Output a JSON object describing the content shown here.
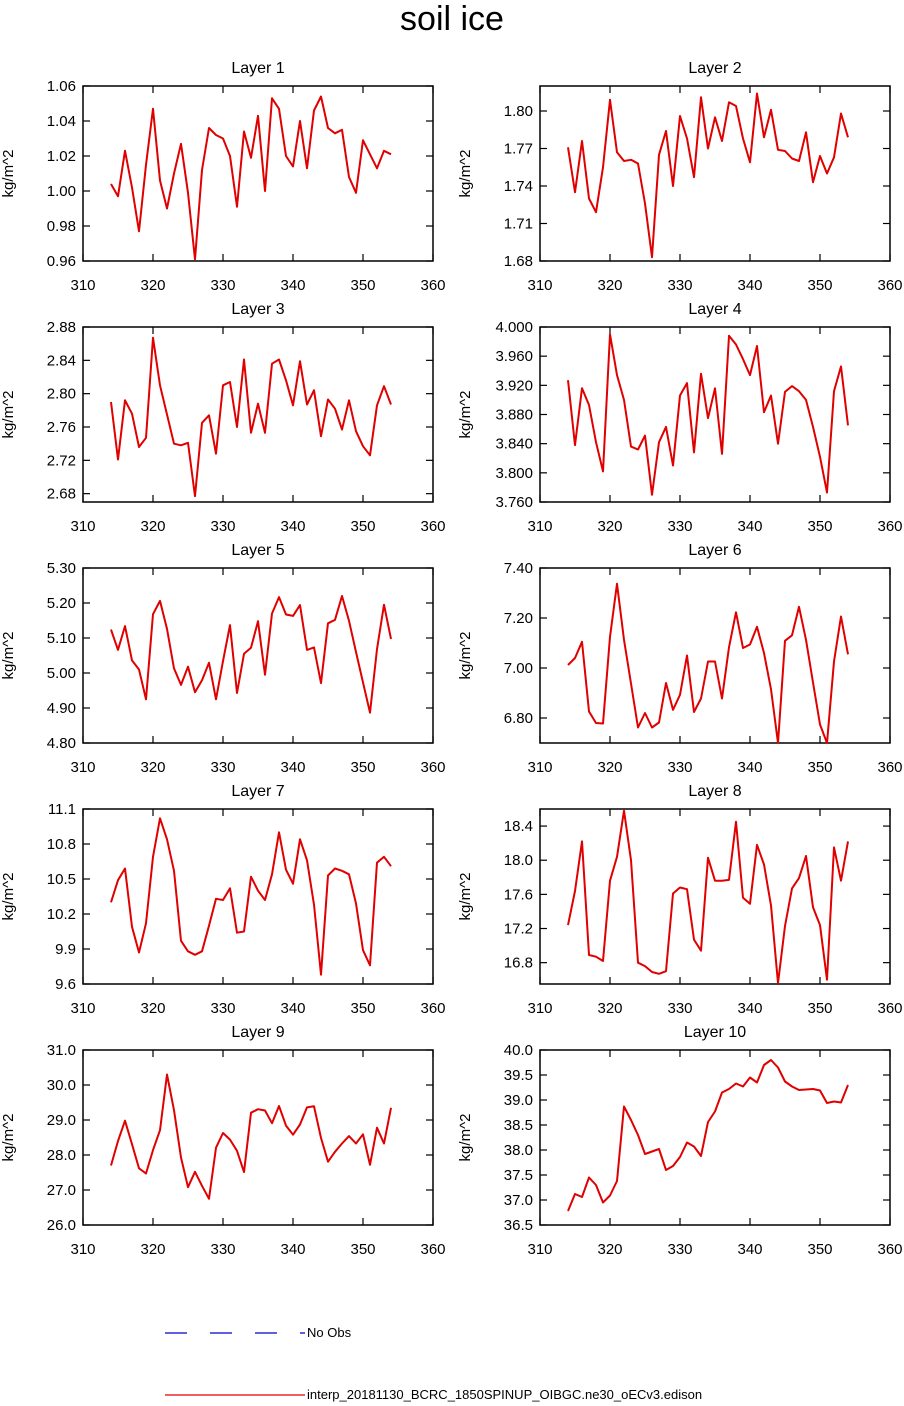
{
  "title": "soil ice",
  "legend": {
    "entries": [
      {
        "label": "No Obs",
        "color": "#0000cc",
        "dash": "dashed"
      },
      {
        "label": "interp_20181130_BCRC_1850SPINUP_OIBGC.ne30_oECv3.edison",
        "color": "#e00000",
        "dash": "solid"
      }
    ]
  },
  "colors": {
    "series": "#e00000",
    "no_obs": "#0000cc"
  },
  "chart_data": [
    {
      "type": "line",
      "title": "Layer 1",
      "xlabel": "",
      "ylabel": "kg/m^2",
      "xlim": [
        310,
        360
      ],
      "xticks": [
        310,
        320,
        330,
        340,
        350,
        360
      ],
      "ylim": [
        0.96,
        1.06
      ],
      "yticks": [
        "0.96",
        "0.98",
        "1.00",
        "1.02",
        "1.04",
        "1.06"
      ],
      "x": [
        314,
        315,
        316,
        317,
        318,
        319,
        320,
        321,
        322,
        323,
        324,
        325,
        326,
        327,
        328,
        329,
        330,
        331,
        332,
        333,
        334,
        335,
        336,
        337,
        338,
        339,
        340,
        341,
        342,
        343,
        344,
        345,
        346,
        347,
        348,
        349,
        350,
        351,
        352,
        353,
        354
      ],
      "values": [
        1.004,
        0.997,
        1.023,
        1.002,
        0.977,
        1.015,
        1.047,
        1.006,
        0.99,
        1.01,
        1.027,
        0.999,
        0.961,
        1.012,
        1.036,
        1.032,
        1.03,
        1.02,
        0.991,
        1.034,
        1.019,
        1.043,
        1.0,
        1.053,
        1.047,
        1.02,
        1.014,
        1.04,
        1.013,
        1.046,
        1.054,
        1.036,
        1.033,
        1.035,
        1.008,
        0.999,
        1.029,
        1.021,
        1.013,
        1.023,
        1.021
      ]
    },
    {
      "type": "line",
      "title": "Layer 2",
      "xlabel": "",
      "ylabel": "kg/m^2",
      "xlim": [
        310,
        360
      ],
      "xticks": [
        310,
        320,
        330,
        340,
        350,
        360
      ],
      "ylim": [
        1.68,
        1.82
      ],
      "yticks": [
        "1.68",
        "1.71",
        "1.74",
        "1.77",
        "1.80"
      ],
      "x": [
        314,
        315,
        316,
        317,
        318,
        319,
        320,
        321,
        322,
        323,
        324,
        325,
        326,
        327,
        328,
        329,
        330,
        331,
        332,
        333,
        334,
        335,
        336,
        337,
        338,
        339,
        340,
        341,
        342,
        343,
        344,
        345,
        346,
        347,
        348,
        349,
        350,
        351,
        352,
        353,
        354
      ],
      "values": [
        1.771,
        1.735,
        1.776,
        1.73,
        1.719,
        1.755,
        1.809,
        1.767,
        1.76,
        1.761,
        1.758,
        1.726,
        1.683,
        1.765,
        1.784,
        1.74,
        1.796,
        1.778,
        1.747,
        1.811,
        1.77,
        1.795,
        1.776,
        1.807,
        1.804,
        1.778,
        1.759,
        1.814,
        1.779,
        1.801,
        1.769,
        1.768,
        1.762,
        1.76,
        1.783,
        1.743,
        1.764,
        1.75,
        1.763,
        1.798,
        1.779
      ]
    },
    {
      "type": "line",
      "title": "Layer 3",
      "xlabel": "",
      "ylabel": "kg/m^2",
      "xlim": [
        310,
        360
      ],
      "xticks": [
        310,
        320,
        330,
        340,
        350,
        360
      ],
      "ylim": [
        2.67,
        2.88
      ],
      "yticks": [
        "2.68",
        "2.72",
        "2.76",
        "2.80",
        "2.84",
        "2.88"
      ],
      "x": [
        314,
        315,
        316,
        317,
        318,
        319,
        320,
        321,
        322,
        323,
        324,
        325,
        326,
        327,
        328,
        329,
        330,
        331,
        332,
        333,
        334,
        335,
        336,
        337,
        338,
        339,
        340,
        341,
        342,
        343,
        344,
        345,
        346,
        347,
        348,
        349,
        350,
        351,
        352,
        353,
        354
      ],
      "values": [
        2.79,
        2.721,
        2.792,
        2.776,
        2.736,
        2.747,
        2.867,
        2.81,
        2.775,
        2.74,
        2.738,
        2.741,
        2.677,
        2.765,
        2.774,
        2.728,
        2.81,
        2.814,
        2.76,
        2.841,
        2.753,
        2.788,
        2.753,
        2.836,
        2.841,
        2.816,
        2.786,
        2.839,
        2.787,
        2.804,
        2.749,
        2.793,
        2.782,
        2.757,
        2.792,
        2.755,
        2.737,
        2.726,
        2.786,
        2.809,
        2.787
      ]
    },
    {
      "type": "line",
      "title": "Layer 4",
      "xlabel": "",
      "ylabel": "kg/m^2",
      "xlim": [
        310,
        360
      ],
      "xticks": [
        310,
        320,
        330,
        340,
        350,
        360
      ],
      "ylim": [
        3.76,
        4.0
      ],
      "yticks": [
        "3.760",
        "3.800",
        "3.840",
        "3.880",
        "3.920",
        "3.960",
        "4.000"
      ],
      "x": [
        314,
        315,
        316,
        317,
        318,
        319,
        320,
        321,
        322,
        323,
        324,
        325,
        326,
        327,
        328,
        329,
        330,
        331,
        332,
        333,
        334,
        335,
        336,
        337,
        338,
        339,
        340,
        341,
        342,
        343,
        344,
        345,
        346,
        347,
        348,
        349,
        350,
        351,
        352,
        353,
        354
      ],
      "values": [
        3.927,
        3.838,
        3.916,
        3.893,
        3.842,
        3.802,
        3.99,
        3.934,
        3.9,
        3.836,
        3.832,
        3.851,
        3.77,
        3.842,
        3.863,
        3.81,
        3.906,
        3.923,
        3.828,
        3.936,
        3.875,
        3.916,
        3.826,
        3.988,
        3.976,
        3.956,
        3.934,
        3.974,
        3.883,
        3.906,
        3.84,
        3.911,
        3.919,
        3.912,
        3.9,
        3.863,
        3.822,
        3.773,
        3.912,
        3.946,
        3.865
      ]
    },
    {
      "type": "line",
      "title": "Layer 5",
      "xlabel": "",
      "ylabel": "kg/m^2",
      "xlim": [
        310,
        360
      ],
      "xticks": [
        310,
        320,
        330,
        340,
        350,
        360
      ],
      "ylim": [
        4.8,
        5.3
      ],
      "yticks": [
        "4.80",
        "4.90",
        "5.00",
        "5.10",
        "5.20",
        "5.30"
      ],
      "x": [
        314,
        315,
        316,
        317,
        318,
        319,
        320,
        321,
        322,
        323,
        324,
        325,
        326,
        327,
        328,
        329,
        330,
        331,
        332,
        333,
        334,
        335,
        336,
        337,
        338,
        339,
        340,
        341,
        342,
        343,
        344,
        345,
        346,
        347,
        348,
        349,
        350,
        351,
        352,
        353,
        354
      ],
      "values": [
        5.124,
        5.066,
        5.134,
        5.036,
        5.01,
        4.925,
        5.168,
        5.206,
        5.126,
        5.013,
        4.966,
        5.018,
        4.945,
        4.979,
        5.029,
        4.925,
        5.034,
        5.137,
        4.943,
        5.055,
        5.072,
        5.148,
        4.995,
        5.17,
        5.217,
        5.167,
        5.163,
        5.194,
        5.066,
        5.073,
        4.971,
        5.142,
        5.152,
        5.22,
        5.149,
        5.06,
        4.973,
        4.887,
        5.068,
        5.195,
        5.097
      ]
    },
    {
      "type": "line",
      "title": "Layer 6",
      "xlabel": "",
      "ylabel": "kg/m^2",
      "xlim": [
        310,
        360
      ],
      "xticks": [
        310,
        320,
        330,
        340,
        350,
        360
      ],
      "ylim": [
        6.7,
        7.4
      ],
      "yticks": [
        "6.80",
        "7.00",
        "7.20",
        "7.40"
      ],
      "x": [
        314,
        315,
        316,
        317,
        318,
        319,
        320,
        321,
        322,
        323,
        324,
        325,
        326,
        327,
        328,
        329,
        330,
        331,
        332,
        333,
        334,
        335,
        336,
        337,
        338,
        339,
        340,
        341,
        342,
        343,
        344,
        345,
        346,
        347,
        348,
        349,
        350,
        351,
        352,
        353,
        354
      ],
      "values": [
        7.012,
        7.04,
        7.105,
        6.826,
        6.78,
        6.778,
        7.125,
        7.337,
        7.113,
        6.938,
        6.762,
        6.82,
        6.762,
        6.782,
        6.94,
        6.833,
        6.893,
        7.05,
        6.824,
        6.878,
        7.026,
        7.026,
        6.878,
        7.083,
        7.223,
        7.08,
        7.094,
        7.165,
        7.06,
        6.915,
        6.7,
        7.109,
        7.131,
        7.245,
        7.113,
        6.942,
        6.774,
        6.7,
        7.026,
        7.206,
        7.055
      ]
    },
    {
      "type": "line",
      "title": "Layer 7",
      "xlabel": "",
      "ylabel": "kg/m^2",
      "xlim": [
        310,
        360
      ],
      "xticks": [
        310,
        320,
        330,
        340,
        350,
        360
      ],
      "ylim": [
        9.6,
        11.1
      ],
      "yticks": [
        "9.6",
        "9.9",
        "10.2",
        "10.5",
        "10.8",
        "11.1"
      ],
      "x": [
        314,
        315,
        316,
        317,
        318,
        319,
        320,
        321,
        322,
        323,
        324,
        325,
        326,
        327,
        328,
        329,
        330,
        331,
        332,
        333,
        334,
        335,
        336,
        337,
        338,
        339,
        340,
        341,
        342,
        343,
        344,
        345,
        346,
        347,
        348,
        349,
        350,
        351,
        352,
        353,
        354
      ],
      "values": [
        10.3,
        10.49,
        10.59,
        10.09,
        9.87,
        10.12,
        10.69,
        11.02,
        10.84,
        10.57,
        9.97,
        9.88,
        9.85,
        9.88,
        10.1,
        10.33,
        10.32,
        10.42,
        10.04,
        10.05,
        10.52,
        10.4,
        10.32,
        10.54,
        10.9,
        10.58,
        10.46,
        10.84,
        10.66,
        10.28,
        9.68,
        10.53,
        10.59,
        10.57,
        10.54,
        10.29,
        9.89,
        9.76,
        10.64,
        10.69,
        10.61
      ]
    },
    {
      "type": "line",
      "title": "Layer 8",
      "xlabel": "",
      "ylabel": "kg/m^2",
      "xlim": [
        310,
        360
      ],
      "xticks": [
        310,
        320,
        330,
        340,
        350,
        360
      ],
      "ylim": [
        16.55,
        18.6
      ],
      "yticks": [
        "16.8",
        "17.2",
        "17.6",
        "18.0",
        "18.4"
      ],
      "x": [
        314,
        315,
        316,
        317,
        318,
        319,
        320,
        321,
        322,
        323,
        324,
        325,
        326,
        327,
        328,
        329,
        330,
        331,
        332,
        333,
        334,
        335,
        336,
        337,
        338,
        339,
        340,
        341,
        342,
        343,
        344,
        345,
        346,
        347,
        348,
        349,
        350,
        351,
        352,
        353,
        354
      ],
      "values": [
        17.24,
        17.64,
        18.22,
        16.89,
        16.87,
        16.82,
        17.76,
        18.04,
        18.58,
        18.0,
        16.8,
        16.76,
        16.69,
        16.67,
        16.7,
        17.61,
        17.68,
        17.66,
        17.07,
        16.94,
        18.03,
        17.76,
        17.76,
        17.77,
        18.45,
        17.56,
        17.49,
        18.18,
        17.95,
        17.47,
        16.56,
        17.23,
        17.67,
        17.79,
        18.05,
        17.45,
        17.24,
        16.6,
        18.15,
        17.76,
        18.22
      ]
    },
    {
      "type": "line",
      "title": "Layer 9",
      "xlabel": "",
      "ylabel": "kg/m^2",
      "xlim": [
        310,
        360
      ],
      "xticks": [
        310,
        320,
        330,
        340,
        350,
        360
      ],
      "ylim": [
        26.0,
        31.0
      ],
      "yticks": [
        "26.0",
        "27.0",
        "28.0",
        "29.0",
        "30.0",
        "31.0"
      ],
      "x": [
        314,
        315,
        316,
        317,
        318,
        319,
        320,
        321,
        322,
        323,
        324,
        325,
        326,
        327,
        328,
        329,
        330,
        331,
        332,
        333,
        334,
        335,
        336,
        337,
        338,
        339,
        340,
        341,
        342,
        343,
        344,
        345,
        346,
        347,
        348,
        349,
        350,
        351,
        352,
        353,
        354
      ],
      "values": [
        27.7,
        28.4,
        28.98,
        28.31,
        27.62,
        27.47,
        28.14,
        28.71,
        30.3,
        29.28,
        27.93,
        27.08,
        27.52,
        27.12,
        26.75,
        28.21,
        28.63,
        28.44,
        28.12,
        27.51,
        29.21,
        29.31,
        29.27,
        28.91,
        29.4,
        28.84,
        28.58,
        28.87,
        29.36,
        29.39,
        28.49,
        27.81,
        28.09,
        28.33,
        28.54,
        28.33,
        28.59,
        27.72,
        28.78,
        28.33,
        29.35
      ]
    },
    {
      "type": "line",
      "title": "Layer 10",
      "xlabel": "",
      "ylabel": "kg/m^2",
      "xlim": [
        310,
        360
      ],
      "xticks": [
        310,
        320,
        330,
        340,
        350,
        360
      ],
      "ylim": [
        36.5,
        40.0
      ],
      "yticks": [
        "36.5",
        "37.0",
        "37.5",
        "38.0",
        "38.5",
        "39.0",
        "39.5",
        "40.0"
      ],
      "x": [
        314,
        315,
        316,
        317,
        318,
        319,
        320,
        321,
        322,
        323,
        324,
        325,
        326,
        327,
        328,
        329,
        330,
        331,
        332,
        333,
        334,
        335,
        336,
        337,
        338,
        339,
        340,
        341,
        342,
        343,
        344,
        345,
        346,
        347,
        348,
        349,
        350,
        351,
        352,
        353,
        354
      ],
      "values": [
        36.78,
        37.12,
        37.06,
        37.45,
        37.3,
        36.95,
        37.09,
        37.38,
        38.87,
        38.6,
        38.3,
        37.92,
        37.97,
        38.02,
        37.6,
        37.68,
        37.86,
        38.15,
        38.07,
        37.88,
        38.56,
        38.77,
        39.15,
        39.22,
        39.33,
        39.27,
        39.45,
        39.35,
        39.7,
        39.8,
        39.65,
        39.37,
        39.27,
        39.2,
        39.21,
        39.22,
        39.19,
        38.94,
        38.97,
        38.95,
        39.3
      ]
    }
  ]
}
